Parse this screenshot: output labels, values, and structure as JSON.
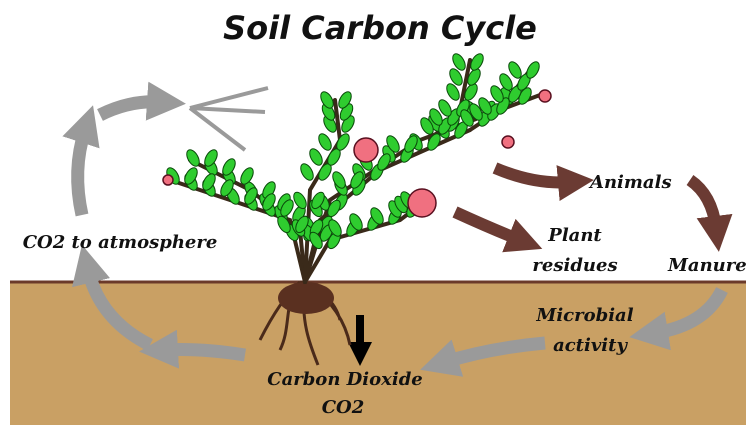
{
  "title": "Soil Carbon Cycle",
  "labels": {
    "animals": "Animals",
    "plant_residues": [
      "Plant",
      "residues"
    ],
    "manure": "Manure",
    "microbial_activity": [
      "Microbial",
      "activity"
    ],
    "co2_to_atmosphere": "CO2 to atmosphere",
    "carbon_dioxide": [
      "Carbon Dioxide",
      "CO2"
    ]
  }
}
